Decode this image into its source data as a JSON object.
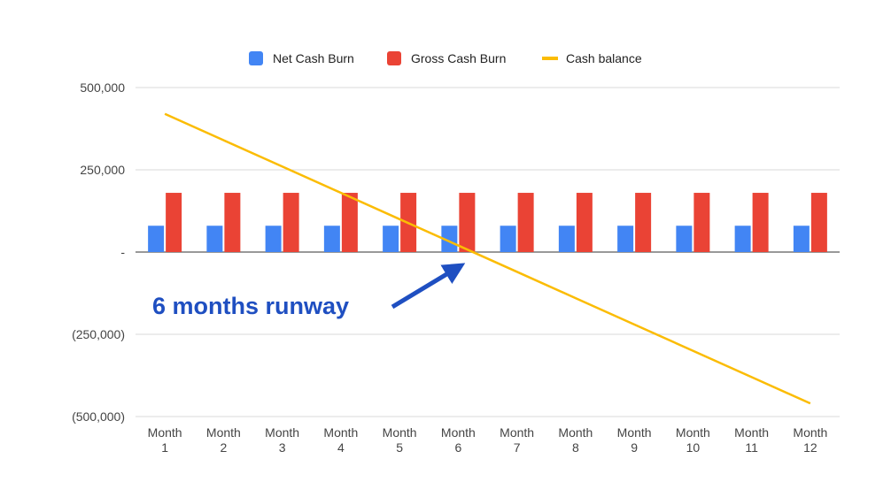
{
  "chart_data": {
    "type": "bar",
    "categories": [
      "Month 1",
      "Month 2",
      "Month 3",
      "Month 4",
      "Month 5",
      "Month 6",
      "Month 7",
      "Month 8",
      "Month 9",
      "Month 10",
      "Month 11",
      "Month 12"
    ],
    "category_lines": [
      [
        "Month",
        "1"
      ],
      [
        "Month",
        "2"
      ],
      [
        "Month",
        "3"
      ],
      [
        "Month",
        "4"
      ],
      [
        "Month",
        "5"
      ],
      [
        "Month",
        "6"
      ],
      [
        "Month",
        "7"
      ],
      [
        "Month",
        "8"
      ],
      [
        "Month",
        "9"
      ],
      [
        "Month",
        "10"
      ],
      [
        "Month",
        "11"
      ],
      [
        "Month",
        "12"
      ]
    ],
    "series": [
      {
        "name": "Net Cash Burn",
        "kind": "bar",
        "color": "#4285f4",
        "values": [
          80000,
          80000,
          80000,
          80000,
          80000,
          80000,
          80000,
          80000,
          80000,
          80000,
          80000,
          80000
        ]
      },
      {
        "name": "Gross Cash Burn",
        "kind": "bar",
        "color": "#ea4335",
        "values": [
          180000,
          180000,
          180000,
          180000,
          180000,
          180000,
          180000,
          180000,
          180000,
          180000,
          180000,
          180000
        ]
      },
      {
        "name": "Cash balance",
        "kind": "line",
        "color": "#fbbc04",
        "values": [
          420000,
          340000,
          260000,
          180000,
          100000,
          20000,
          -60000,
          -140000,
          -220000,
          -300000,
          -380000,
          -460000
        ]
      }
    ],
    "ylim": [
      -500000,
      500000
    ],
    "yticks": [
      500000,
      250000,
      0,
      -250000,
      -500000
    ],
    "ytick_labels": [
      "500,000",
      "250,000",
      "-",
      "(250,000)",
      "(500,000)"
    ],
    "legend_position": "top",
    "grid": true,
    "annotation": {
      "text": "6 months runway",
      "color": "#1f4fc1",
      "points_to_category": "Month 6",
      "points_to_value": 0
    }
  }
}
